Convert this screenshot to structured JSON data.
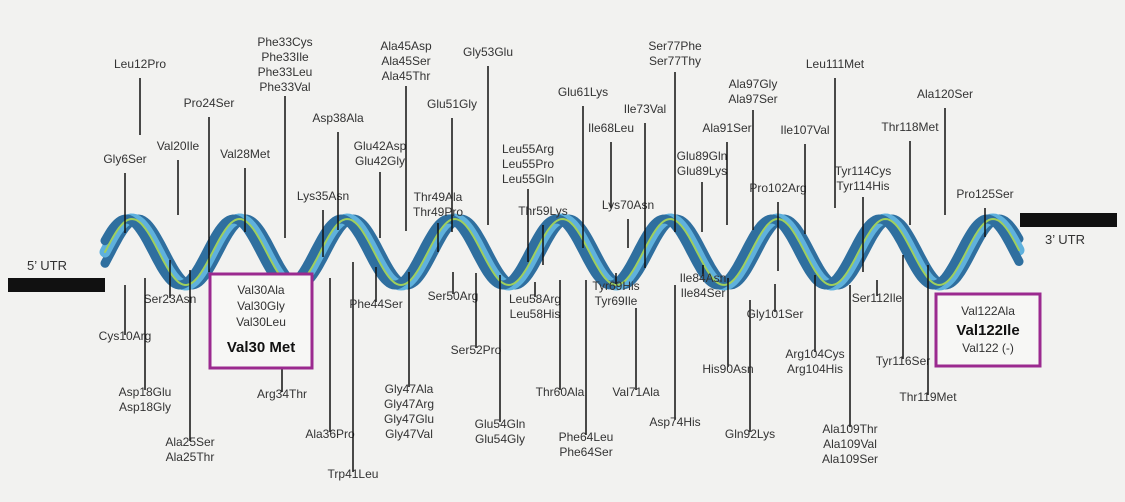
{
  "utr": {
    "left": "5’ UTR",
    "right": "3’ UTR"
  },
  "colors": {
    "helix_dark": "#2f6f9f",
    "helix_light": "#5fb1dd",
    "helix_core": "#9fcf5c",
    "box": "#9b2a8f",
    "line": "#111111"
  },
  "boxes": {
    "val30": {
      "lines": [
        "Val30Ala",
        "Val30Gly",
        "Val30Leu"
      ],
      "main": "Val30 Met"
    },
    "val122": {
      "lines": [
        "Val122Ala"
      ],
      "main": "Val122Ile",
      "extra": "Val122 (-)"
    }
  },
  "mutations": [
    {
      "lines": [
        "Leu12Pro"
      ]
    },
    {
      "lines": [
        "Gly6Ser"
      ]
    },
    {
      "lines": [
        "Val20Ile"
      ]
    },
    {
      "lines": [
        "Pro24Ser"
      ]
    },
    {
      "lines": [
        "Val28Met"
      ]
    },
    {
      "lines": [
        "Phe33Cys",
        "Phe33Ile",
        "Phe33Leu",
        "Phe33Val"
      ]
    },
    {
      "lines": [
        "Lys35Asn"
      ]
    },
    {
      "lines": [
        "Asp38Ala"
      ]
    },
    {
      "lines": [
        "Glu42Asp",
        "Glu42Gly"
      ]
    },
    {
      "lines": [
        "Ala45Asp",
        "Ala45Ser",
        "Ala45Thr"
      ]
    },
    {
      "lines": [
        "Glu51Gly"
      ]
    },
    {
      "lines": [
        "Thr49Ala",
        "Thr49Pro"
      ]
    },
    {
      "lines": [
        "Gly53Glu"
      ]
    },
    {
      "lines": [
        "Leu55Arg",
        "Leu55Pro",
        "Leu55Gln"
      ]
    },
    {
      "lines": [
        "Thr59Lys"
      ]
    },
    {
      "lines": [
        "Glu61Lys"
      ]
    },
    {
      "lines": [
        "Ile68Leu"
      ]
    },
    {
      "lines": [
        "Lys70Asn"
      ]
    },
    {
      "lines": [
        "Ile73Val"
      ]
    },
    {
      "lines": [
        "Ser77Phe",
        "Ser77Thy"
      ]
    },
    {
      "lines": [
        "Glu89Gln",
        "Glu89Lys"
      ]
    },
    {
      "lines": [
        "Ala91Ser"
      ]
    },
    {
      "lines": [
        "Ala97Gly",
        "Ala97Ser"
      ]
    },
    {
      "lines": [
        "Pro102Arg"
      ]
    },
    {
      "lines": [
        "Ile107Val"
      ]
    },
    {
      "lines": [
        "Leu111Met"
      ]
    },
    {
      "lines": [
        "Tyr114Cys",
        "Tyr114His"
      ]
    },
    {
      "lines": [
        "Thr118Met"
      ]
    },
    {
      "lines": [
        "Ala120Ser"
      ]
    },
    {
      "lines": [
        "Pro125Ser"
      ]
    },
    {
      "lines": [
        "Cys10Arg"
      ]
    },
    {
      "lines": [
        "Ser23Asn"
      ]
    },
    {
      "lines": [
        "Asp18Glu",
        "Asp18Gly"
      ]
    },
    {
      "lines": [
        "Ala25Ser",
        "Ala25Thr"
      ]
    },
    {
      "lines": [
        "Arg34Thr"
      ]
    },
    {
      "lines": [
        "Ala36Pro"
      ]
    },
    {
      "lines": [
        "Trp41Leu"
      ]
    },
    {
      "lines": [
        "Phe44Ser"
      ]
    },
    {
      "lines": [
        "Gly47Ala",
        "Gly47Arg",
        "Gly47Glu",
        "Gly47Val"
      ]
    },
    {
      "lines": [
        "Ser50Arg"
      ]
    },
    {
      "lines": [
        "Ser52Pro"
      ]
    },
    {
      "lines": [
        "Glu54Gln",
        "Glu54Gly"
      ]
    },
    {
      "lines": [
        "Leu58Arg",
        "Leu58His"
      ]
    },
    {
      "lines": [
        "Thr60Ala"
      ]
    },
    {
      "lines": [
        "Phe64Leu",
        "Phe64Ser"
      ]
    },
    {
      "lines": [
        "Tyr69His",
        "Tyr69Ile"
      ]
    },
    {
      "lines": [
        "Val71Ala"
      ]
    },
    {
      "lines": [
        "Asp74His"
      ]
    },
    {
      "lines": [
        "Ile84Asn",
        "Ile84Ser"
      ]
    },
    {
      "lines": [
        "His90Asn"
      ]
    },
    {
      "lines": [
        "Gln92Lys"
      ]
    },
    {
      "lines": [
        "Gly101Ser"
      ]
    },
    {
      "lines": [
        "Arg104Cys",
        "Arg104His"
      ]
    },
    {
      "lines": [
        "Ala109Thr",
        "Ala109Val",
        "Ala109Ser"
      ]
    },
    {
      "lines": [
        "Ser112Ile"
      ]
    },
    {
      "lines": [
        "Tyr116Ser"
      ]
    },
    {
      "lines": [
        "Thr119Met"
      ]
    }
  ]
}
